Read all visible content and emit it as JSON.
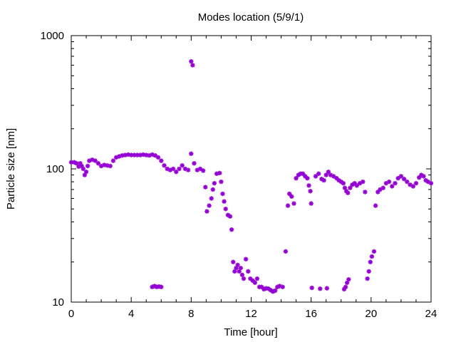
{
  "chart_data": {
    "type": "scatter",
    "title": "Modes location (5/9/1)",
    "xlabel": "Time [hour]",
    "ylabel": "Particle size [nm]",
    "xlim": [
      0,
      24
    ],
    "ylim": [
      10,
      1000
    ],
    "yscale": "log",
    "grid": false,
    "legend": "none",
    "marker_color": "#9400d3",
    "x_ticks": [
      {
        "value": 0,
        "label": "0"
      },
      {
        "value": 4,
        "label": "4"
      },
      {
        "value": 8,
        "label": "8"
      },
      {
        "value": 12,
        "label": "12"
      },
      {
        "value": 16,
        "label": "16"
      },
      {
        "value": 20,
        "label": "20"
      },
      {
        "value": 24,
        "label": "24"
      }
    ],
    "y_ticks": [
      {
        "value": 10,
        "label": "10"
      },
      {
        "value": 100,
        "label": "100"
      },
      {
        "value": 1000,
        "label": "1000"
      }
    ],
    "series": [
      {
        "points": [
          [
            0.0,
            112
          ],
          [
            0.2,
            112
          ],
          [
            0.35,
            110
          ],
          [
            0.5,
            104
          ],
          [
            0.6,
            110
          ],
          [
            0.7,
            105
          ],
          [
            0.8,
            100
          ],
          [
            0.9,
            90
          ],
          [
            1.0,
            95
          ],
          [
            1.1,
            105
          ],
          [
            1.2,
            115
          ],
          [
            1.4,
            117
          ],
          [
            1.6,
            115
          ],
          [
            1.8,
            110
          ],
          [
            2.0,
            105
          ],
          [
            2.2,
            107
          ],
          [
            2.4,
            106
          ],
          [
            2.6,
            105
          ],
          [
            2.8,
            115
          ],
          [
            3.0,
            122
          ],
          [
            3.2,
            124
          ],
          [
            3.4,
            126
          ],
          [
            3.6,
            127
          ],
          [
            3.8,
            128
          ],
          [
            4.0,
            127
          ],
          [
            4.2,
            127
          ],
          [
            4.4,
            127
          ],
          [
            4.6,
            127
          ],
          [
            4.8,
            128
          ],
          [
            5.0,
            127
          ],
          [
            5.2,
            126
          ],
          [
            5.4,
            128
          ],
          [
            5.6,
            126
          ],
          [
            5.8,
            122
          ],
          [
            6.0,
            115
          ],
          [
            6.2,
            106
          ],
          [
            6.4,
            100
          ],
          [
            6.6,
            98
          ],
          [
            6.8,
            100
          ],
          [
            7.0,
            95
          ],
          [
            7.2,
            100
          ],
          [
            7.4,
            106
          ],
          [
            7.6,
            100
          ],
          [
            7.8,
            98
          ],
          [
            8.0,
            130
          ],
          [
            8.2,
            110
          ],
          [
            8.4,
            98
          ],
          [
            8.6,
            100
          ],
          [
            8.8,
            97
          ],
          [
            8.95,
            73
          ],
          [
            9.05,
            48
          ],
          [
            9.2,
            53
          ],
          [
            9.35,
            60
          ],
          [
            9.45,
            70
          ],
          [
            9.55,
            78
          ],
          [
            9.7,
            92
          ],
          [
            9.9,
            93
          ],
          [
            10.0,
            80
          ],
          [
            10.1,
            65
          ],
          [
            10.2,
            57
          ],
          [
            10.3,
            50
          ],
          [
            10.45,
            45
          ],
          [
            10.6,
            44
          ],
          [
            10.7,
            35
          ],
          [
            10.8,
            20
          ],
          [
            10.9,
            17
          ],
          [
            11.0,
            18
          ],
          [
            11.1,
            19
          ],
          [
            11.2,
            17
          ],
          [
            11.3,
            18
          ],
          [
            11.4,
            16
          ],
          [
            11.5,
            15
          ],
          [
            11.65,
            21
          ],
          [
            11.8,
            17
          ],
          [
            11.95,
            15
          ],
          [
            12.1,
            14.5
          ],
          [
            12.25,
            14
          ],
          [
            12.4,
            15
          ],
          [
            12.55,
            13
          ],
          [
            12.7,
            13
          ],
          [
            12.85,
            12.5
          ],
          [
            13.0,
            12.7
          ],
          [
            13.15,
            12.6
          ],
          [
            13.3,
            12.3
          ],
          [
            13.45,
            12
          ],
          [
            13.6,
            12.2
          ],
          [
            13.75,
            13
          ],
          [
            13.9,
            13.2
          ],
          [
            14.1,
            13
          ],
          [
            14.3,
            24
          ],
          [
            14.45,
            53
          ],
          [
            14.55,
            65
          ],
          [
            14.7,
            62
          ],
          [
            14.85,
            55
          ],
          [
            15.0,
            85
          ],
          [
            15.15,
            90
          ],
          [
            15.3,
            92
          ],
          [
            15.45,
            92
          ],
          [
            15.6,
            88
          ],
          [
            15.75,
            85
          ],
          [
            15.85,
            75
          ],
          [
            15.95,
            68
          ],
          [
            16.0,
            55
          ],
          [
            16.3,
            88
          ],
          [
            16.5,
            92
          ],
          [
            16.7,
            84
          ],
          [
            16.85,
            82
          ],
          [
            17.0,
            90
          ],
          [
            17.15,
            95
          ],
          [
            17.3,
            90
          ],
          [
            17.5,
            88
          ],
          [
            17.7,
            85
          ],
          [
            17.85,
            82
          ],
          [
            18.0,
            80
          ],
          [
            18.15,
            78
          ],
          [
            18.25,
            72
          ],
          [
            18.35,
            68
          ],
          [
            18.45,
            66
          ],
          [
            18.6,
            72
          ],
          [
            18.75,
            76
          ],
          [
            18.9,
            78
          ],
          [
            19.05,
            75
          ],
          [
            19.25,
            78
          ],
          [
            19.45,
            80
          ],
          [
            19.6,
            67
          ],
          [
            19.75,
            15
          ],
          [
            19.85,
            17
          ],
          [
            19.95,
            20
          ],
          [
            20.05,
            22
          ],
          [
            20.2,
            24
          ],
          [
            20.3,
            53
          ],
          [
            20.45,
            67
          ],
          [
            20.6,
            70
          ],
          [
            20.8,
            72
          ],
          [
            21.0,
            78
          ],
          [
            21.2,
            80
          ],
          [
            21.4,
            74
          ],
          [
            21.6,
            78
          ],
          [
            21.8,
            85
          ],
          [
            22.0,
            88
          ],
          [
            22.2,
            84
          ],
          [
            22.4,
            80
          ],
          [
            22.6,
            76
          ],
          [
            22.8,
            74
          ],
          [
            23.0,
            78
          ],
          [
            23.2,
            86
          ],
          [
            23.35,
            90
          ],
          [
            23.5,
            88
          ],
          [
            23.65,
            82
          ],
          [
            23.8,
            80
          ],
          [
            24.0,
            78
          ],
          [
            8.0,
            640
          ],
          [
            8.1,
            600
          ],
          [
            5.4,
            13
          ],
          [
            5.55,
            13.2
          ],
          [
            5.7,
            13
          ],
          [
            5.85,
            13.1
          ],
          [
            6.0,
            13
          ],
          [
            16.05,
            12.8
          ],
          [
            16.6,
            12.6
          ],
          [
            17.05,
            12.7
          ],
          [
            18.2,
            12.5
          ],
          [
            18.3,
            13
          ],
          [
            18.4,
            14
          ],
          [
            18.5,
            14.8
          ]
        ]
      }
    ]
  }
}
